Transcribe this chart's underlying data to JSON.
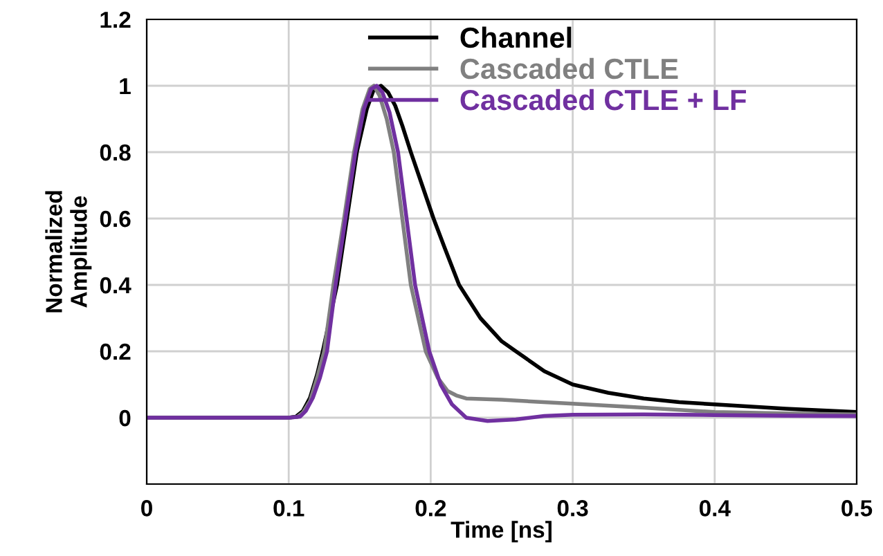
{
  "chart_data": {
    "type": "line",
    "xlabel": "Time [ns]",
    "ylabel": "Normalized\nAmplitude",
    "xlim": [
      0,
      0.5
    ],
    "xticks": [
      0,
      0.1,
      0.2,
      0.3,
      0.4,
      0.5
    ],
    "ylim": [
      -0.2,
      1.2
    ],
    "yticks": [
      {
        "value": -0.2,
        "label": null
      },
      0,
      0.2,
      0.4,
      0.6,
      0.8,
      1,
      1.2
    ],
    "grid": true,
    "legend": "top",
    "marker": "none",
    "line_style": "solid",
    "series": [
      {
        "name": "Channel",
        "color": "#000000",
        "x": [
          0,
          0.1,
          0.105,
          0.11,
          0.115,
          0.12,
          0.124,
          0.134,
          0.141,
          0.148,
          0.155,
          0.16,
          0.165,
          0.17,
          0.175,
          0.18,
          0.186,
          0.194,
          0.202,
          0.21,
          0.22,
          0.235,
          0.25,
          0.26,
          0.28,
          0.3,
          0.325,
          0.35,
          0.375,
          0.4,
          0.45,
          0.5
        ],
        "values": [
          0,
          0,
          0.003,
          0.02,
          0.06,
          0.13,
          0.2,
          0.4,
          0.6,
          0.8,
          0.93,
          0.99,
          1,
          0.98,
          0.94,
          0.88,
          0.8,
          0.7,
          0.6,
          0.51,
          0.4,
          0.3,
          0.23,
          0.2,
          0.14,
          0.1,
          0.075,
          0.058,
          0.047,
          0.04,
          0.027,
          0.017
        ]
      },
      {
        "name": "Cascaded CTLE",
        "color": "#808080",
        "x": [
          0,
          0.1,
          0.106,
          0.11,
          0.115,
          0.12,
          0.125,
          0.1315,
          0.139,
          0.146,
          0.152,
          0.157,
          0.16,
          0.164,
          0.169,
          0.174,
          0.18,
          0.186,
          0.1965,
          0.205,
          0.212,
          0.218,
          0.225,
          0.25,
          0.3,
          0.35,
          0.4,
          0.45,
          0.5
        ],
        "values": [
          0,
          0,
          0.002,
          0.015,
          0.05,
          0.12,
          0.2,
          0.4,
          0.6,
          0.8,
          0.93,
          0.99,
          1,
          0.97,
          0.9,
          0.8,
          0.6,
          0.4,
          0.2,
          0.12,
          0.08,
          0.067,
          0.058,
          0.054,
          0.042,
          0.03,
          0.017,
          0.013,
          0.01
        ]
      },
      {
        "name": "Cascaded CTLE + LF",
        "color": "#7030a0",
        "x": [
          0,
          0.1,
          0.108,
          0.112,
          0.117,
          0.122,
          0.127,
          0.133,
          0.14,
          0.147,
          0.153,
          0.158,
          0.162,
          0.166,
          0.171,
          0.177,
          0.183,
          0.189,
          0.199,
          0.207,
          0.215,
          0.225,
          0.24,
          0.26,
          0.28,
          0.3,
          0.35,
          0.4,
          0.45,
          0.5
        ],
        "values": [
          0,
          0,
          0.003,
          0.02,
          0.06,
          0.12,
          0.2,
          0.4,
          0.6,
          0.8,
          0.93,
          0.99,
          1,
          0.98,
          0.92,
          0.8,
          0.6,
          0.4,
          0.2,
          0.1,
          0.04,
          0.0,
          -0.01,
          -0.005,
          0.005,
          0.009,
          0.01,
          0.008,
          0.006,
          0.005
        ]
      }
    ]
  }
}
